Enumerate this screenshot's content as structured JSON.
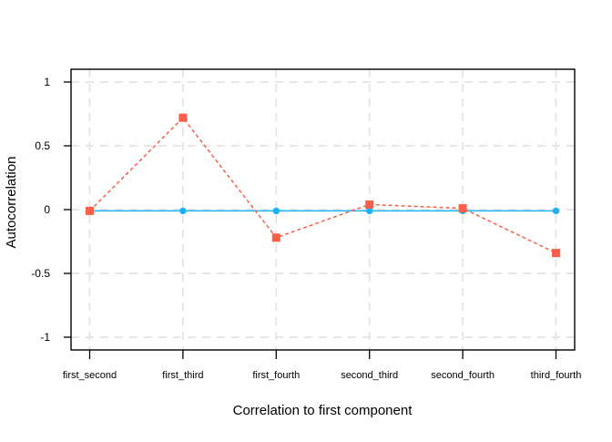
{
  "chart_data": {
    "type": "line",
    "title": "",
    "xlabel": "Correlation to first component",
    "ylabel": "Autocorrelation",
    "categories": [
      "first_second",
      "first_third",
      "first_fourth",
      "second_third",
      "second_fourth",
      "third_fourth"
    ],
    "series": [
      {
        "id": "component-correlation-circles",
        "marker": "circle",
        "line_style": "solid",
        "color": "#1cb3f2",
        "values": [
          -0.01,
          -0.01,
          -0.01,
          -0.01,
          -0.01,
          -0.01
        ]
      },
      {
        "id": "autocorrelation-squares",
        "marker": "square",
        "line_style": "dashed",
        "color": "#fa5f4a",
        "values": [
          -0.01,
          0.72,
          -0.22,
          0.04,
          0.01,
          -0.34
        ]
      }
    ],
    "yticks": [
      -1,
      -0.5,
      0,
      0.5,
      1
    ],
    "ytick_labels": [
      "-1",
      "-0.5",
      "0",
      "0.5",
      "1"
    ],
    "ylim": [
      -1.1,
      1.1
    ],
    "grid": true,
    "grid_color": "#e6e6e6",
    "border_color": "#000000",
    "legend_position": "none"
  }
}
